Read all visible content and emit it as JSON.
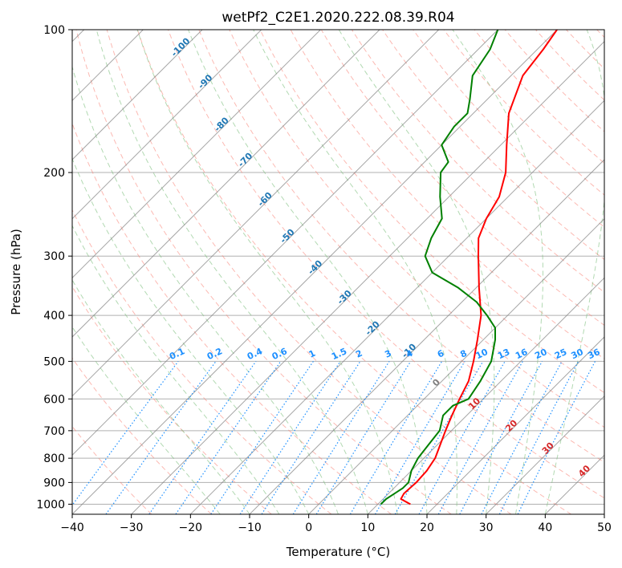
{
  "chart_data": {
    "type": "line",
    "subtype": "skew-t log-p",
    "title": "wetPf2_C2E1.2020.222.08.39.R04",
    "xlabel": "Temperature (°C)",
    "ylabel": "Pressure (hPa)",
    "xlim": [
      -40,
      50
    ],
    "ylim": [
      1050,
      100
    ],
    "y_scale": "log",
    "x_ticks": [
      -40,
      -30,
      -20,
      -10,
      0,
      10,
      20,
      30,
      40,
      50
    ],
    "y_ticks": [
      100,
      200,
      300,
      400,
      500,
      600,
      700,
      800,
      900,
      1000
    ],
    "grid": "horizontal at pressure ticks",
    "colors": {
      "temperature": "#ff0000",
      "dewpoint": "#008000",
      "isotherm": "#808080",
      "dry_adiabat": "#fa8072",
      "moist_adiabat": "#7fbf7f",
      "mixing_ratio": "#1e90ff",
      "isotherm_label": "#1f77b4",
      "moist_label": "#d62728",
      "isobar": "#b0b0b0"
    },
    "series": [
      {
        "role": "temperature",
        "pressure": [
          1000,
          975,
          950,
          925,
          900,
          850,
          800,
          750,
          700,
          650,
          600,
          550,
          500,
          450,
          400,
          350,
          300,
          275,
          250,
          225,
          200,
          175,
          150,
          125,
          110,
          100
        ],
        "values": [
          15.5,
          13.0,
          12.6,
          12.7,
          12.8,
          12.6,
          11.9,
          10.5,
          9.0,
          7.5,
          6.0,
          4.5,
          2.0,
          -1.0,
          -4.5,
          -9.5,
          -15.0,
          -18.0,
          -20.0,
          -21.5,
          -24.5,
          -29.0,
          -34.0,
          -38.0,
          -39.0,
          -40.0
        ]
      },
      {
        "role": "dewpoint",
        "pressure": [
          1000,
          975,
          950,
          925,
          900,
          850,
          800,
          750,
          700,
          650,
          620,
          600,
          550,
          500,
          450,
          425,
          400,
          375,
          350,
          325,
          300,
          275,
          250,
          225,
          200,
          190,
          175,
          160,
          150,
          140,
          125,
          110,
          100
        ],
        "values": [
          10.5,
          10.5,
          11.0,
          11.5,
          11.5,
          10.0,
          9.0,
          8.5,
          8.0,
          6.0,
          6.0,
          7.5,
          6.5,
          5.0,
          2.0,
          0.0,
          -3.5,
          -7.5,
          -13.0,
          -20.0,
          -24.0,
          -26.0,
          -27.5,
          -31.5,
          -35.5,
          -36.0,
          -40.0,
          -41.0,
          -41.0,
          -43.0,
          -46.5,
          -48.0,
          -50.0
        ]
      }
    ],
    "isotherm_labels": [
      {
        "value": -100,
        "text": "-100"
      },
      {
        "value": -90,
        "text": "-90"
      },
      {
        "value": -80,
        "text": "-80"
      },
      {
        "value": -70,
        "text": "-70"
      },
      {
        "value": -60,
        "text": "-60"
      },
      {
        "value": -50,
        "text": "-50"
      },
      {
        "value": -40,
        "text": "-40"
      },
      {
        "value": -30,
        "text": "-30"
      },
      {
        "value": -20,
        "text": "-20"
      },
      {
        "value": -10,
        "text": "-10"
      }
    ],
    "moist_labels": [
      {
        "value": 0,
        "text": "0"
      },
      {
        "value": 10,
        "text": "10"
      },
      {
        "value": 20,
        "text": "20"
      },
      {
        "value": 30,
        "text": "30"
      },
      {
        "value": 40,
        "text": "40"
      }
    ],
    "mixing_ratio_labels": [
      "0.1",
      "0.2",
      "0.4",
      "0.6",
      "1",
      "1.5",
      "2",
      "3",
      "4",
      "6",
      "8",
      "10",
      "13",
      "16",
      "20",
      "25",
      "30",
      "36"
    ]
  }
}
